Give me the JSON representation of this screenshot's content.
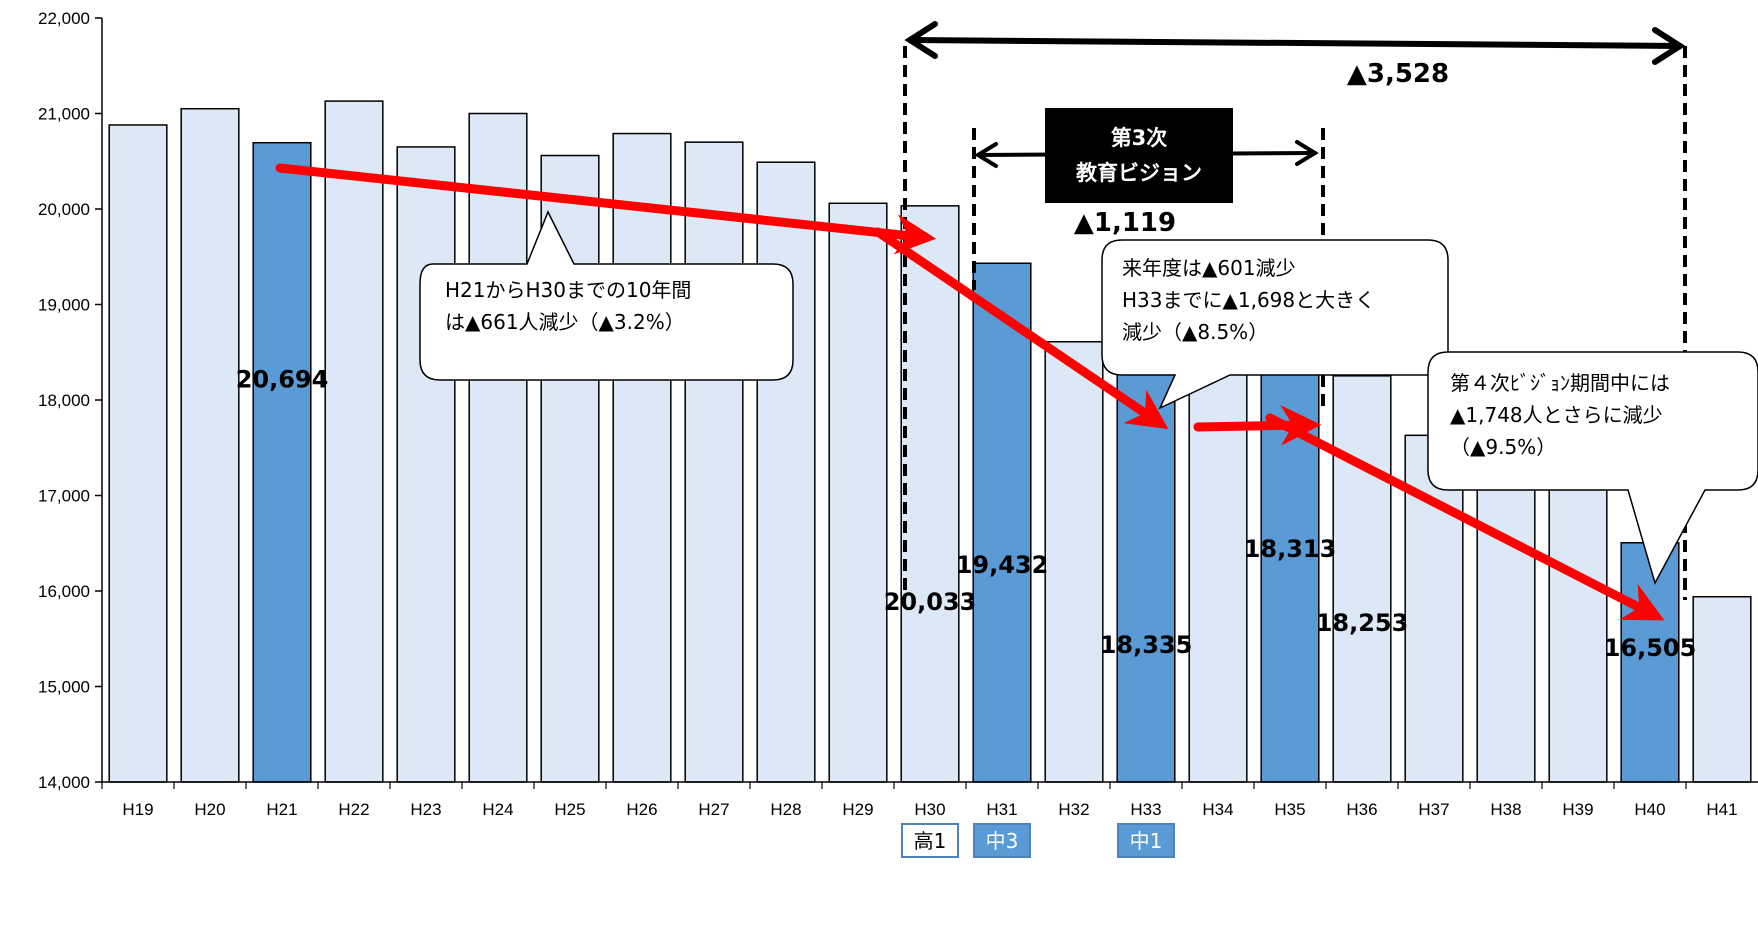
{
  "chart_data": {
    "type": "bar",
    "title": "",
    "xlabel": "",
    "ylabel": "",
    "ylim": [
      14000,
      22000
    ],
    "yticks": [
      "14,000",
      "15,000",
      "16,000",
      "17,000",
      "18,000",
      "19,000",
      "20,000",
      "21,000",
      "22,000"
    ],
    "categories": [
      "H19",
      "H20",
      "H21",
      "H22",
      "H23",
      "H24",
      "H25",
      "H26",
      "H27",
      "H28",
      "H29",
      "H30",
      "H31",
      "H32",
      "H33",
      "H34",
      "H35",
      "H36",
      "H37",
      "H38",
      "H39",
      "H40",
      "H41"
    ],
    "values": [
      20880,
      21050,
      20694,
      21130,
      20650,
      21000,
      20560,
      20790,
      20700,
      20490,
      20060,
      20033,
      19432,
      18610,
      18335,
      18630,
      18313,
      18253,
      17630,
      17700,
      17100,
      16505,
      15940
    ],
    "highlighted": [
      "H21",
      "H31",
      "H33",
      "H35",
      "H40"
    ],
    "data_labels": [
      {
        "category": "H21",
        "text": "20,694"
      },
      {
        "category": "H30",
        "text": "20,033"
      },
      {
        "category": "H31",
        "text": "19,432"
      },
      {
        "category": "H33",
        "text": "18,335"
      },
      {
        "category": "H35",
        "text": "18,313"
      },
      {
        "category": "H36",
        "text": "18,253"
      },
      {
        "category": "H40",
        "text": "16,505"
      }
    ],
    "colors": {
      "bar": "#dce8f5",
      "highlight": "#5b9bd5",
      "arrow": "#ff0000",
      "title_box": "#000000",
      "mark_outline": "#4f81bd"
    }
  },
  "annotations": {
    "span_total": "▲3,528",
    "span_vision": "▲1,119",
    "vision_title_line1": "第3次",
    "vision_title_line2": "教育ビジョン",
    "bubble1": [
      "H21からH30までの10年間",
      "は▲661人減少（▲3.2%）"
    ],
    "bubble2": [
      "来年度は▲601減少",
      "H33までに▲1,698と大きく",
      "減少（▲8.5%）"
    ],
    "bubble3": [
      "第４次ﾋﾞｼﾞｮﾝ期間中には",
      "▲1,748人とさらに減少",
      "（▲9.5%）"
    ]
  },
  "grade_marks": [
    {
      "category": "H30",
      "text": "高1",
      "filled": false
    },
    {
      "category": "H31",
      "text": "中3",
      "filled": true
    },
    {
      "category": "H33",
      "text": "中1",
      "filled": true
    }
  ]
}
